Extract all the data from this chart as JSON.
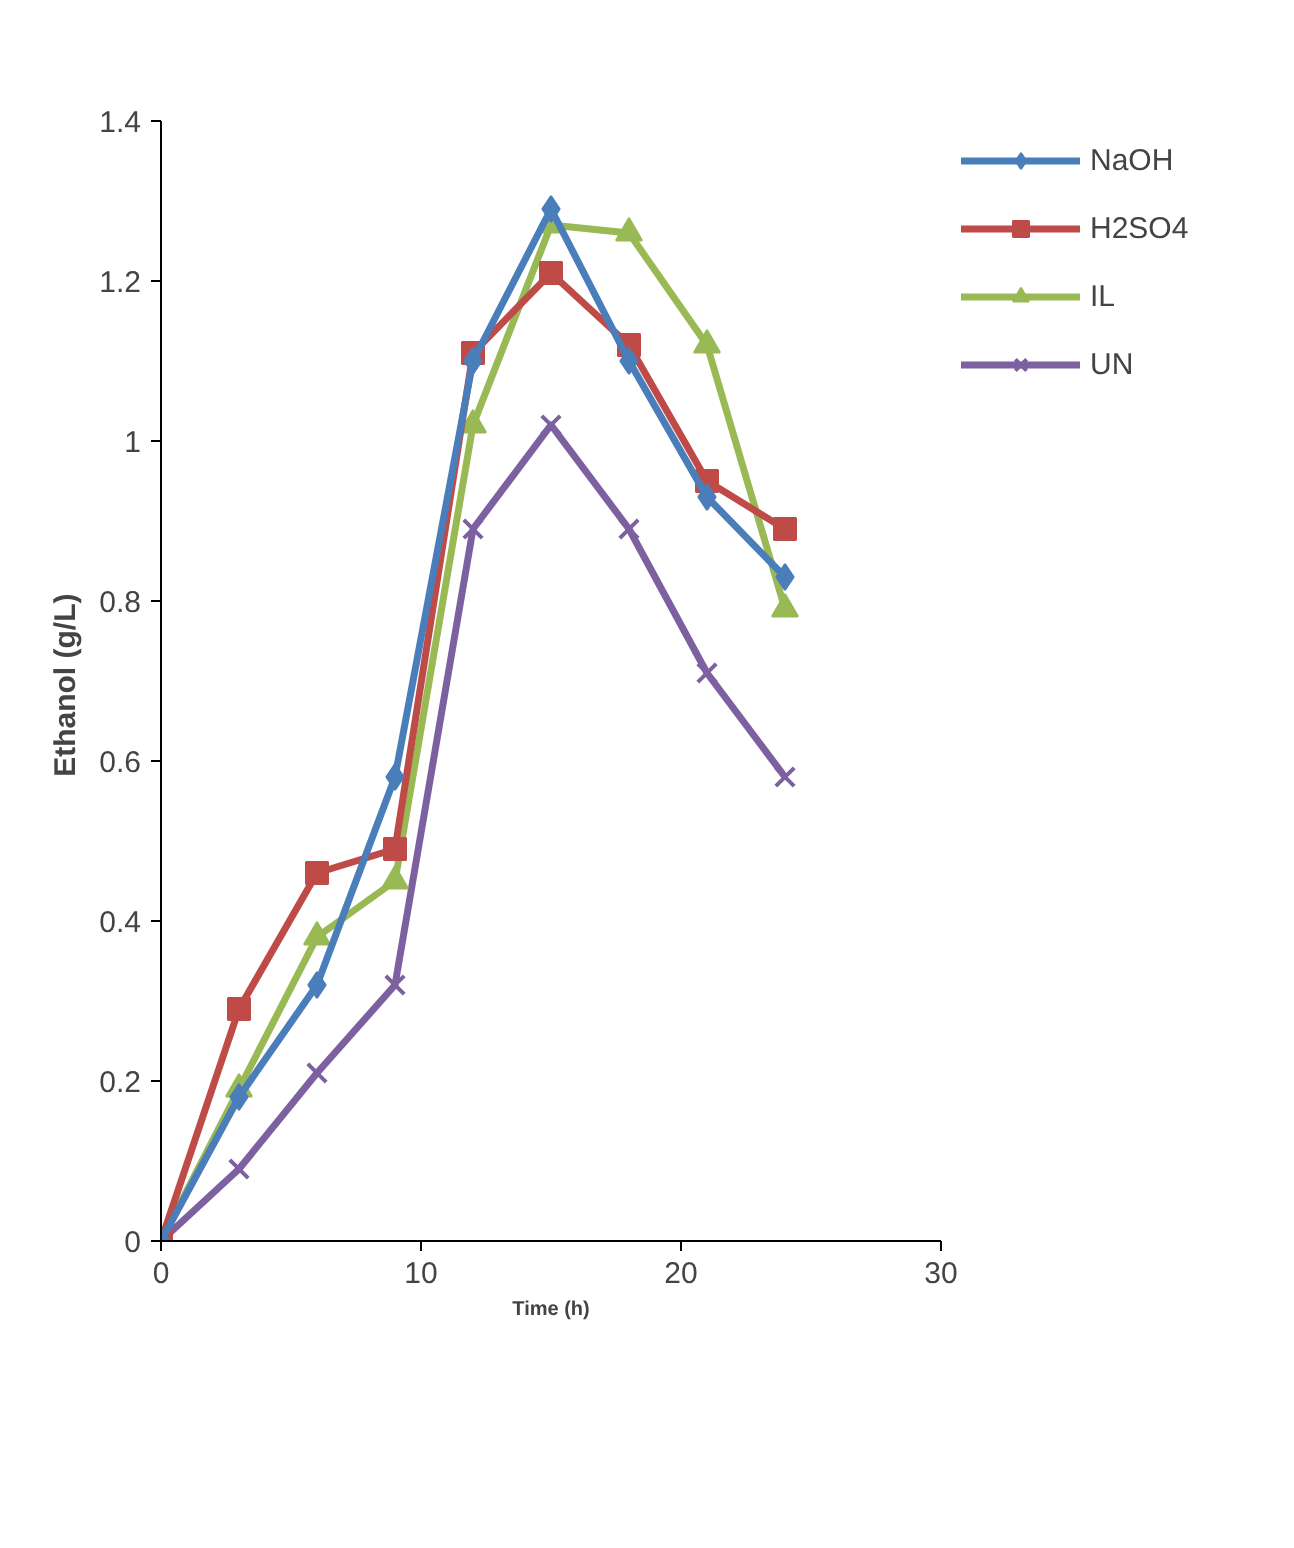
{
  "chart_data": {
    "type": "line",
    "xlabel": "Time (h)",
    "ylabel": "Ethanol  (g/L)",
    "x": [
      0,
      3,
      6,
      9,
      12,
      15,
      18,
      21,
      24
    ],
    "xlim": [
      0,
      30
    ],
    "xticks": [
      0,
      10,
      20,
      30
    ],
    "ylim": [
      0,
      1.4
    ],
    "yticks": [
      0,
      0.2,
      0.4,
      0.6,
      0.8,
      1,
      1.2,
      1.4
    ],
    "grid": false,
    "legend": "top right",
    "line_style": "solid",
    "series": [
      {
        "name": "NaOH",
        "color": "#4a7ebb",
        "marker": "diamond",
        "values": [
          0,
          0.18,
          0.32,
          0.58,
          1.1,
          1.29,
          1.1,
          0.93,
          0.83
        ]
      },
      {
        "name": "H2SO4",
        "color": "#be4b48",
        "marker": "square",
        "values": [
          0,
          0.29,
          0.46,
          0.49,
          1.11,
          1.21,
          1.12,
          0.95,
          0.89
        ]
      },
      {
        "name": "IL",
        "color": "#98b954",
        "marker": "triangle",
        "values": [
          0,
          0.19,
          0.38,
          0.45,
          1.02,
          1.27,
          1.26,
          1.12,
          0.79
        ]
      },
      {
        "name": "UN",
        "color": "#7d60a0",
        "marker": "x",
        "values": [
          0,
          0.09,
          0.21,
          0.32,
          0.89,
          1.02,
          0.89,
          0.71,
          0.58
        ]
      }
    ]
  }
}
